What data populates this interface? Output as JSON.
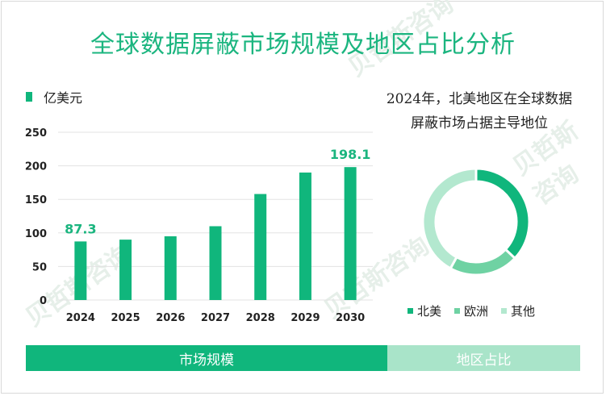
{
  "title": "全球数据屏蔽市场规模及地区占比分析",
  "watermark": "贝哲斯咨询",
  "colors": {
    "bar": "#10b67c",
    "accent": "#1bb57f",
    "na": "#10b67c",
    "eu": "#6fd2a3",
    "other": "#b3e8cf"
  },
  "chart_data": [
    {
      "type": "bar",
      "legend": [
        "亿美元"
      ],
      "categories": [
        "2024",
        "2025",
        "2026",
        "2027",
        "2028",
        "2029",
        "2030"
      ],
      "values": [
        87.3,
        90,
        95,
        110,
        158,
        190,
        198.1
      ],
      "data_labels": [
        {
          "category": "2024",
          "text": "87.3"
        },
        {
          "category": "2030",
          "text": "198.1"
        }
      ],
      "y_ticks": [
        "0",
        "50",
        "100",
        "150",
        "200",
        "250"
      ],
      "ylim": [
        0,
        250
      ],
      "grid": true
    },
    {
      "type": "pie",
      "title": "2024年，北美地区在全球数据屏蔽市场占据主导地位",
      "title_lines": [
        "2024年，北美地区在全球数据",
        "屏蔽市场占据主导地位"
      ],
      "donut": true,
      "labels": [
        "北美",
        "欧洲",
        "其他"
      ],
      "values": [
        0.37,
        0.21,
        0.42
      ]
    }
  ],
  "footer": {
    "left": "市场规模",
    "right": "地区占比"
  }
}
